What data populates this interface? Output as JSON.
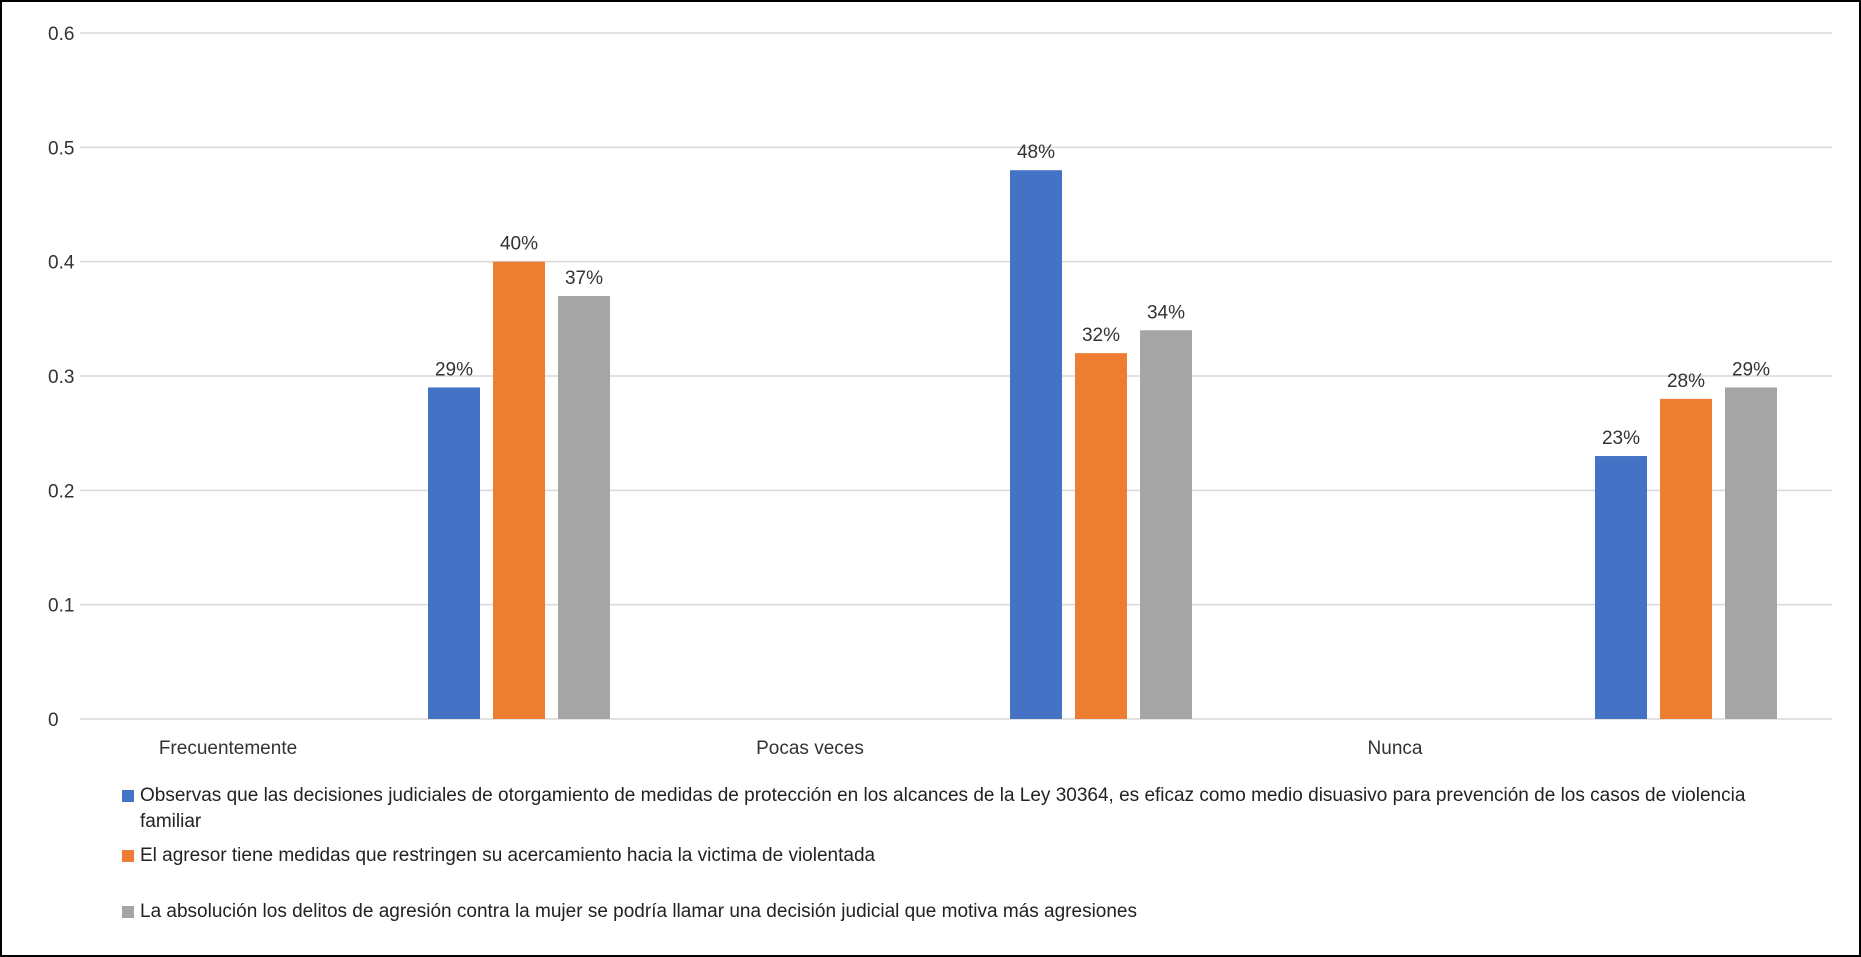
{
  "chart_data": {
    "type": "bar",
    "categories": [
      "Frecuentemente",
      "Pocas veces",
      "Nunca"
    ],
    "series": [
      {
        "name": "Observas que las decisiones judiciales de otorgamiento de medidas de protección en los alcances de la Ley 30364, es eficaz como medio disuasivo para prevención de los casos de violencia familiar",
        "color": "#4472C4",
        "values": [
          0.29,
          0.48,
          0.23
        ],
        "labels": [
          "29%",
          "48%",
          "23%"
        ]
      },
      {
        "name": "El agresor tiene medidas que restringen su acercamiento hacia la victima de violentada",
        "color": "#ED7D31",
        "values": [
          0.4,
          0.32,
          0.28
        ],
        "labels": [
          "40%",
          "32%",
          "28%"
        ]
      },
      {
        "name": "La absolución los delitos de agresión contra la mujer se podría llamar una decisión judicial que motiva más agresiones",
        "color": "#A5A5A5",
        "values": [
          0.37,
          0.34,
          0.29
        ],
        "labels": [
          "37%",
          "34%",
          "29%"
        ]
      }
    ],
    "yticks": [
      "0",
      "0.1",
      "0.2",
      "0.3",
      "0.4",
      "0.5",
      "0.6"
    ],
    "ylim": [
      0,
      0.6
    ],
    "grid": true,
    "legend_position": "bottom"
  }
}
